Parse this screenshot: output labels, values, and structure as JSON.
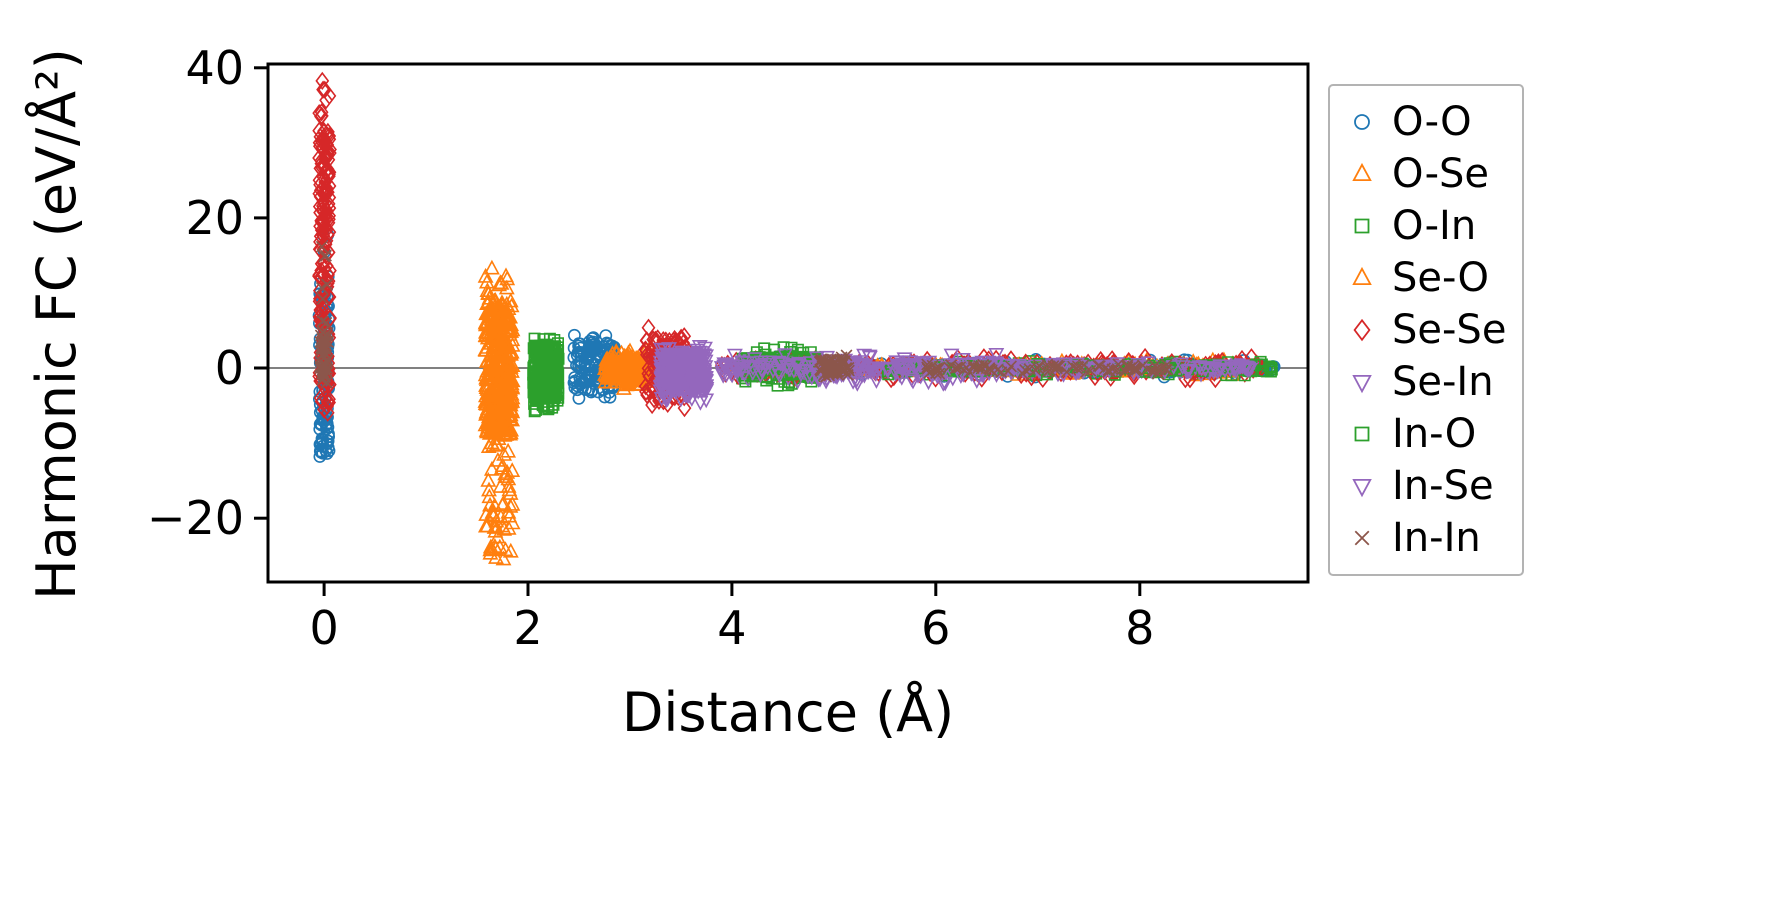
{
  "figure": {
    "background": "#ffffff",
    "frame_color": "#000000",
    "zero_line_color": "#808080",
    "legend_border_color": "#b3b3b3"
  },
  "chart_data": {
    "type": "scatter",
    "title": "",
    "xlabel": "Distance (Å)",
    "ylabel": "Harmonic FC (eV/Å²)",
    "xlim": [
      -0.55,
      9.65
    ],
    "ylim": [
      -28.5,
      40.5
    ],
    "xticks": [
      0,
      2,
      4,
      6,
      8
    ],
    "yticks": [
      -20,
      0,
      20,
      40
    ],
    "grid": false,
    "zero_line_y": 0,
    "legend_position": "right-outside",
    "marker_style": "open",
    "series": [
      {
        "name": "O-O",
        "marker": "circle",
        "color": "#1f77b4",
        "clusters": [
          {
            "x": [
              -0.05,
              0.05
            ],
            "y": [
              -14.5,
              18
            ],
            "dense": [
              -12,
              12
            ],
            "n": 110
          },
          {
            "x": [
              2.45,
              2.85
            ],
            "y": [
              -4.5,
              4.5
            ],
            "dense": [
              -3,
              3.5
            ],
            "n": 150
          },
          {
            "x": [
              4.2,
              9.1
            ],
            "y": [
              -1.2,
              1.2
            ],
            "dense": [
              -0.6,
              0.6
            ],
            "n": 190
          },
          {
            "x": [
              9.1,
              9.35
            ],
            "y": [
              -0.4,
              0.4
            ],
            "dense": [
              -0.3,
              0.3
            ],
            "n": 18
          }
        ]
      },
      {
        "name": "O-Se",
        "marker": "triangle-up",
        "color": "#ff7f0e",
        "clusters": [
          {
            "x": [
              1.58,
              1.85
            ],
            "y": [
              -26,
              13.5
            ],
            "dense": [
              -9,
              9
            ],
            "n": 240
          },
          {
            "x": [
              2.75,
              3.2
            ],
            "y": [
              -3,
              2.5
            ],
            "dense": [
              -2,
              1.5
            ],
            "n": 110
          },
          {
            "x": [
              4.0,
              9.0
            ],
            "y": [
              -1,
              1
            ],
            "dense": [
              -0.5,
              0.5
            ],
            "n": 140
          }
        ]
      },
      {
        "name": "O-In",
        "marker": "square",
        "color": "#2ca02c",
        "clusters": [
          {
            "x": [
              2.05,
              2.3
            ],
            "y": [
              -6.5,
              4
            ],
            "dense": [
              -4,
              3
            ],
            "n": 130
          },
          {
            "x": [
              4.1,
              4.85
            ],
            "y": [
              -2.5,
              3
            ],
            "dense": [
              -1.5,
              1.5
            ],
            "n": 90
          },
          {
            "x": [
              5.5,
              9.3
            ],
            "y": [
              -1,
              1
            ],
            "dense": [
              -0.5,
              0.5
            ],
            "n": 110
          }
        ]
      },
      {
        "name": "Se-O",
        "marker": "triangle-up",
        "color": "#ff7f0e",
        "clusters": [
          {
            "x": [
              1.58,
              1.85
            ],
            "y": [
              -26,
              13.5
            ],
            "dense": [
              -9,
              9
            ],
            "n": 240
          },
          {
            "x": [
              2.75,
              3.2
            ],
            "y": [
              -3,
              2.5
            ],
            "dense": [
              -2,
              1.5
            ],
            "n": 110
          },
          {
            "x": [
              4.0,
              9.0
            ],
            "y": [
              -1,
              1
            ],
            "dense": [
              -0.5,
              0.5
            ],
            "n": 140
          }
        ]
      },
      {
        "name": "Se-Se",
        "marker": "diamond",
        "color": "#d62728",
        "clusters": [
          {
            "x": [
              -0.05,
              0.06
            ],
            "y": [
              -8,
              38.5
            ],
            "dense": [
              -6,
              32
            ],
            "n": 190
          },
          {
            "x": [
              3.15,
              3.55
            ],
            "y": [
              -6,
              5.5
            ],
            "dense": [
              -4,
              4
            ],
            "n": 130
          },
          {
            "x": [
              3.9,
              9.2
            ],
            "y": [
              -1.5,
              1.5
            ],
            "dense": [
              -0.8,
              0.8
            ],
            "n": 240
          }
        ]
      },
      {
        "name": "Se-In",
        "marker": "triangle-down",
        "color": "#9467bd",
        "clusters": [
          {
            "x": [
              3.3,
              3.75
            ],
            "y": [
              -4.5,
              3
            ],
            "dense": [
              -3,
              2
            ],
            "n": 170
          },
          {
            "x": [
              3.9,
              6.6
            ],
            "y": [
              -2,
              2
            ],
            "dense": [
              -1,
              1
            ],
            "n": 150
          },
          {
            "x": [
              6.6,
              9.1
            ],
            "y": [
              -0.8,
              0.8
            ],
            "dense": [
              -0.4,
              0.4
            ],
            "n": 80
          }
        ]
      },
      {
        "name": "In-O",
        "marker": "square",
        "color": "#2ca02c",
        "clusters": [
          {
            "x": [
              2.05,
              2.3
            ],
            "y": [
              -6.5,
              4
            ],
            "dense": [
              -4,
              3
            ],
            "n": 130
          },
          {
            "x": [
              4.1,
              4.85
            ],
            "y": [
              -2.5,
              3
            ],
            "dense": [
              -1.5,
              1.5
            ],
            "n": 90
          },
          {
            "x": [
              5.5,
              9.3
            ],
            "y": [
              -1,
              1
            ],
            "dense": [
              -0.5,
              0.5
            ],
            "n": 110
          }
        ]
      },
      {
        "name": "In-Se",
        "marker": "triangle-down",
        "color": "#9467bd",
        "clusters": [
          {
            "x": [
              3.3,
              3.75
            ],
            "y": [
              -4.5,
              3
            ],
            "dense": [
              -3,
              2
            ],
            "n": 170
          },
          {
            "x": [
              3.9,
              6.6
            ],
            "y": [
              -2,
              2
            ],
            "dense": [
              -1,
              1
            ],
            "n": 150
          },
          {
            "x": [
              6.6,
              9.1
            ],
            "y": [
              -0.8,
              0.8
            ],
            "dense": [
              -0.4,
              0.4
            ],
            "n": 80
          }
        ]
      },
      {
        "name": "In-In",
        "marker": "x",
        "color": "#8c564b",
        "clusters": [
          {
            "x": [
              -0.04,
              0.04
            ],
            "y": [
              -2.5,
              17
            ],
            "dense": [
              -2,
              5
            ],
            "n": 60
          },
          {
            "x": [
              4.85,
              5.15
            ],
            "y": [
              -1.5,
              1.8
            ],
            "dense": [
              -1,
              1.2
            ],
            "n": 60
          },
          {
            "x": [
              5.9,
              8.3
            ],
            "y": [
              -0.8,
              0.8
            ],
            "dense": [
              -0.5,
              0.5
            ],
            "n": 90
          }
        ]
      }
    ]
  }
}
